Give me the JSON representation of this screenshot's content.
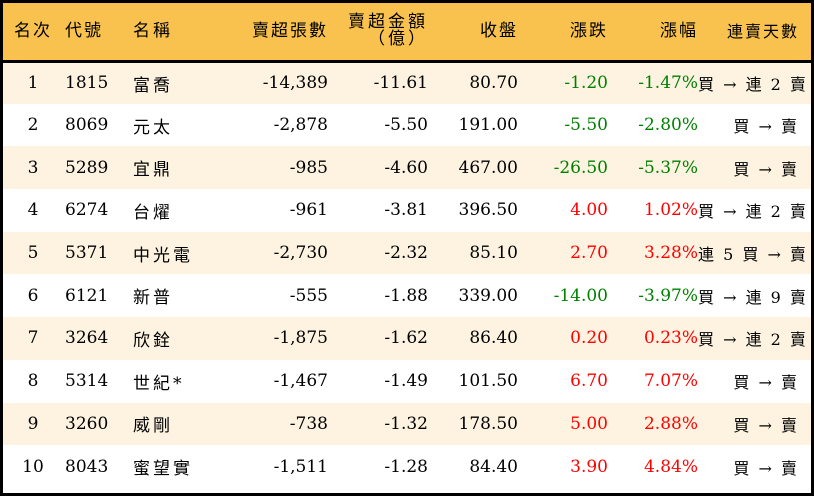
{
  "table": {
    "headers": {
      "rank": "名次",
      "code": "代號",
      "name": "名稱",
      "net_sell_lots": "賣超張數",
      "net_sell_amount_line1": "賣超金額",
      "net_sell_amount_line2": "（億）",
      "close": "收盤",
      "change": "漲跌",
      "change_pct": "漲幅",
      "streak": "連賣天數"
    },
    "colors": {
      "header_bg": "#f9c24f",
      "row_alt_bg": "#fdf3e0",
      "up": "#ff0000",
      "down": "#008000",
      "border": "#000000"
    },
    "rows": [
      {
        "rank": "1",
        "code": "1815",
        "name": "富喬",
        "lots": "-14,389",
        "amount": "-11.61",
        "close": "80.70",
        "change": "-1.20",
        "pct": "-1.47%",
        "dir": "down",
        "streak": "買 → 連 2 賣"
      },
      {
        "rank": "2",
        "code": "8069",
        "name": "元太",
        "lots": "-2,878",
        "amount": "-5.50",
        "close": "191.00",
        "change": "-5.50",
        "pct": "-2.80%",
        "dir": "down",
        "streak": "買 → 賣"
      },
      {
        "rank": "3",
        "code": "5289",
        "name": "宜鼎",
        "lots": "-985",
        "amount": "-4.60",
        "close": "467.00",
        "change": "-26.50",
        "pct": "-5.37%",
        "dir": "down",
        "streak": "買 → 賣"
      },
      {
        "rank": "4",
        "code": "6274",
        "name": "台燿",
        "lots": "-961",
        "amount": "-3.81",
        "close": "396.50",
        "change": "4.00",
        "pct": "1.02%",
        "dir": "up",
        "streak": "買 → 連 2 賣"
      },
      {
        "rank": "5",
        "code": "5371",
        "name": "中光電",
        "lots": "-2,730",
        "amount": "-2.32",
        "close": "85.10",
        "change": "2.70",
        "pct": "3.28%",
        "dir": "up",
        "streak": "連 5 買 → 賣"
      },
      {
        "rank": "6",
        "code": "6121",
        "name": "新普",
        "lots": "-555",
        "amount": "-1.88",
        "close": "339.00",
        "change": "-14.00",
        "pct": "-3.97%",
        "dir": "down",
        "streak": "買 → 連 9 賣"
      },
      {
        "rank": "7",
        "code": "3264",
        "name": "欣銓",
        "lots": "-1,875",
        "amount": "-1.62",
        "close": "86.40",
        "change": "0.20",
        "pct": "0.23%",
        "dir": "up",
        "streak": "買 → 連 2 賣"
      },
      {
        "rank": "8",
        "code": "5314",
        "name": "世紀*",
        "lots": "-1,467",
        "amount": "-1.49",
        "close": "101.50",
        "change": "6.70",
        "pct": "7.07%",
        "dir": "up",
        "streak": "買 → 賣"
      },
      {
        "rank": "9",
        "code": "3260",
        "name": "威剛",
        "lots": "-738",
        "amount": "-1.32",
        "close": "178.50",
        "change": "5.00",
        "pct": "2.88%",
        "dir": "up",
        "streak": "買 → 賣"
      },
      {
        "rank": "10",
        "code": "8043",
        "name": "蜜望實",
        "lots": "-1,511",
        "amount": "-1.28",
        "close": "84.40",
        "change": "3.90",
        "pct": "4.84%",
        "dir": "up",
        "streak": "買 → 賣"
      }
    ]
  }
}
